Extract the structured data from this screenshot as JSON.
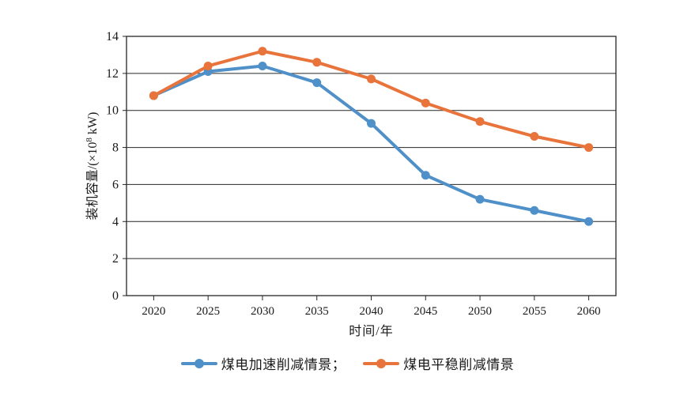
{
  "chart_data": {
    "type": "line",
    "x": [
      "2020",
      "2025",
      "2030",
      "2035",
      "2040",
      "2045",
      "2050",
      "2055",
      "2060"
    ],
    "series": [
      {
        "name": "煤电加速削减情景；",
        "color": "#4f90c9",
        "values": [
          10.8,
          12.1,
          12.4,
          11.5,
          9.3,
          6.5,
          5.2,
          4.6,
          4.0
        ]
      },
      {
        "name": "煤电平稳削减情景",
        "color": "#e8743c",
        "values": [
          10.8,
          12.4,
          13.2,
          12.6,
          11.7,
          10.4,
          9.4,
          8.6,
          8.0
        ]
      }
    ],
    "xlabel": "时间/年",
    "ylabel_parts": {
      "prefix": "装机容量/(×10",
      "sup": "8",
      "suffix": " kW)"
    },
    "ylim": [
      0,
      14
    ],
    "ytick_step": 2,
    "grid": "horizontal",
    "legend_position": "bottom",
    "axis_color": "#262626",
    "text_color": "#1a1a1a"
  }
}
